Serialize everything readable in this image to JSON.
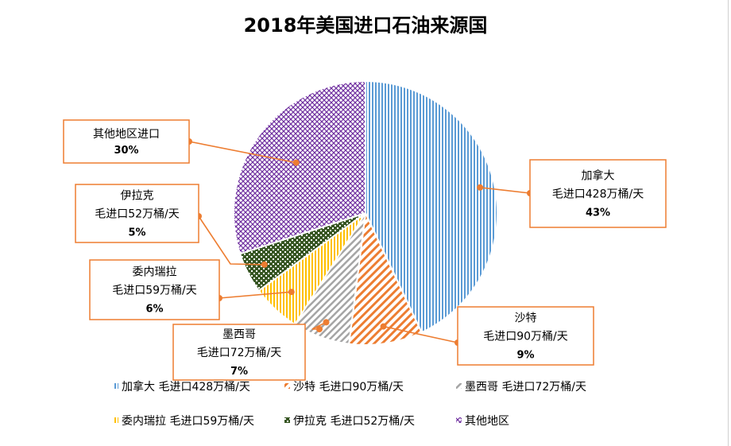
{
  "chart_data": {
    "type": "pie",
    "title": "2018年美国进口石油来源国",
    "slices": [
      {
        "key": "canada",
        "legend": "加拿大 毛进口428万桶/天",
        "label_lines": [
          "加拿大",
          "毛进口428万桶/天"
        ],
        "percent_label": "43%",
        "value": 43,
        "color": "#5b9bd5",
        "pattern": "vertical"
      },
      {
        "key": "saudi",
        "legend": "沙特 毛进口90万桶/天",
        "label_lines": [
          "沙特",
          "毛进口90万桶/天"
        ],
        "percent_label": "9%",
        "value": 9,
        "color": "#ed7d31",
        "pattern": "diagonal"
      },
      {
        "key": "mexico",
        "legend": "墨西哥 毛进口72万桶/天",
        "label_lines": [
          "墨西哥",
          "毛进口72万桶/天"
        ],
        "percent_label": "7%",
        "value": 7,
        "color": "#a5a5a5",
        "pattern": "diagonal-wide"
      },
      {
        "key": "venezuela",
        "legend": "委内瑞拉 毛进口59万桶/天",
        "label_lines": [
          "委内瑞拉",
          "毛进口59万桶/天"
        ],
        "percent_label": "6%",
        "value": 6,
        "color": "#ffc000",
        "pattern": "vertical"
      },
      {
        "key": "iraq",
        "legend": "伊拉克 毛进口52万桶/天",
        "label_lines": [
          "伊拉克",
          "毛进口52万桶/天"
        ],
        "percent_label": "5%",
        "value": 5,
        "color": "#375623",
        "pattern": "checker"
      },
      {
        "key": "other",
        "legend": "其他地区",
        "label_lines": [
          "其他地区进口"
        ],
        "percent_label": "30%",
        "value": 30,
        "color": "#7030a0",
        "pattern": "grid"
      }
    ],
    "legend_position": "bottom"
  }
}
